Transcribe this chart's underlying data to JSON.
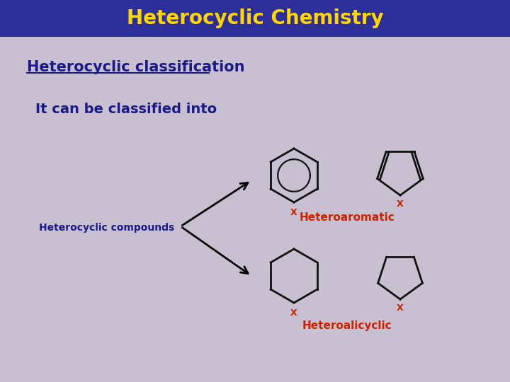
{
  "title": "Heterocyclic Chemistry",
  "title_color": "#FFD700",
  "title_bg": "#2E2E9A",
  "bg_color": "#C8C0D0",
  "subtitle": "Heterocyclic classification",
  "subtitle_color": "#1A1A8C",
  "body_text": "It can be classified into",
  "body_color": "#1A1A8C",
  "label_compounds": "Heterocyclic compounds",
  "label_aromatic": "Heteroaromatic",
  "label_alicyclic": "Heteroalicyclic",
  "label_color_dark": "#1A1A8C",
  "label_color_red": "#CC2200",
  "x_label_color": "#CC2200",
  "molecule_color": "#111111"
}
